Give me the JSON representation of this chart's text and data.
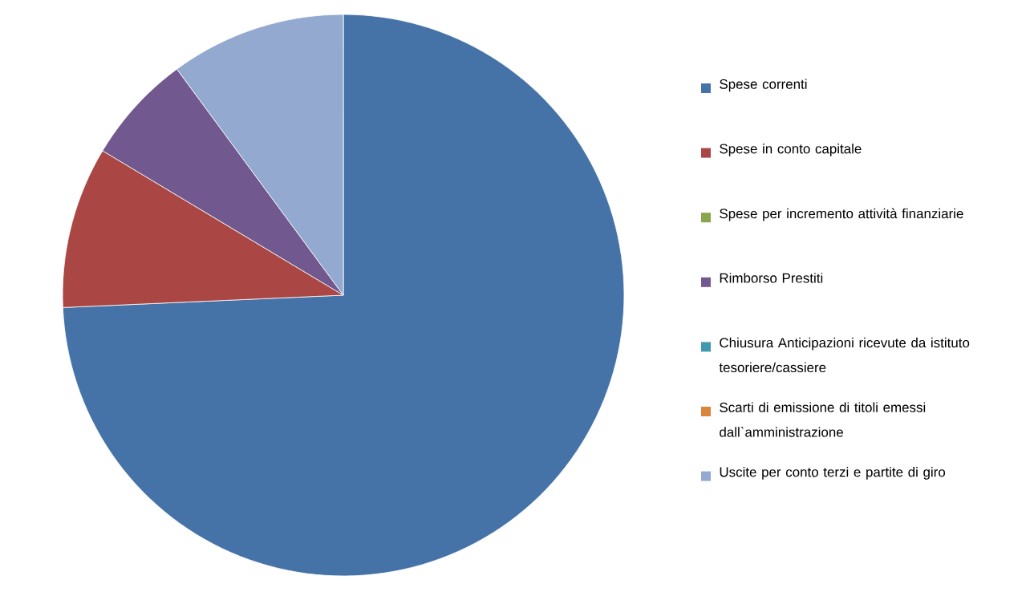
{
  "chart_data": {
    "type": "pie",
    "categories": [
      "Spese correnti",
      "Spese in conto capitale",
      "Spese per incremento attività finanziarie",
      "Rimborso Prestiti",
      "Chiusura Anticipazioni ricevute da istituto tesoriere/cassiere",
      "Scarti di emissione di titoli emessi dall`amministrazione",
      "Uscite per conto terzi e partite di giro"
    ],
    "values": [
      74.3,
      9.3,
      0,
      6.3,
      0,
      0,
      10.1
    ],
    "colors": [
      "#4572a7",
      "#aa4643",
      "#89a54e",
      "#71588f",
      "#4198af",
      "#db843d",
      "#93a9cf"
    ],
    "legend": "right"
  }
}
